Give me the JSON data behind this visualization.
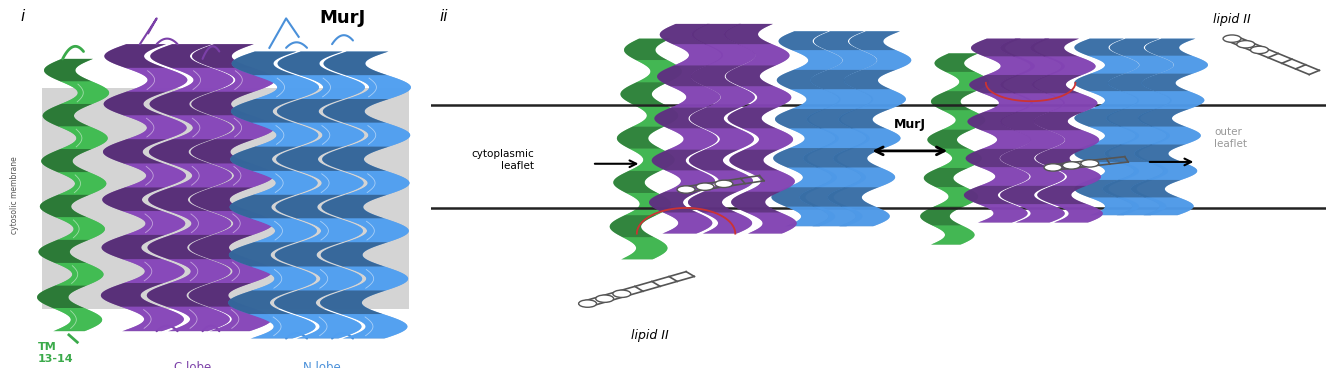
{
  "fig_width": 13.26,
  "fig_height": 3.68,
  "dpi": 100,
  "background_color": "#ffffff",
  "panel_i_label": "i",
  "panel_ii_label": "ii",
  "murj_title": "MurJ",
  "tm_label": "TM\n13-14",
  "c_lobe_label": "C lobe",
  "n_lobe_label": "N lobe",
  "cytoplasmic_leaflet_label": "cytoplasmic\nleaflet",
  "outer_leaflet_label": "outer\nleaflet",
  "lipid_ii_label_bottom": "lipid II",
  "lipid_ii_label_top": "lipid II",
  "murj_arrow_label": "MurJ",
  "cytosolic_membrane_label": "cytosolic membrane",
  "green_color": "#3aaa4a",
  "purple_color": "#7b40a8",
  "blue_color": "#4a90d9",
  "gray_bg": "#d4d4d4",
  "membrane_color": "#222222",
  "red_loop_color": "#cc3333",
  "lipid_gray": "#888888"
}
